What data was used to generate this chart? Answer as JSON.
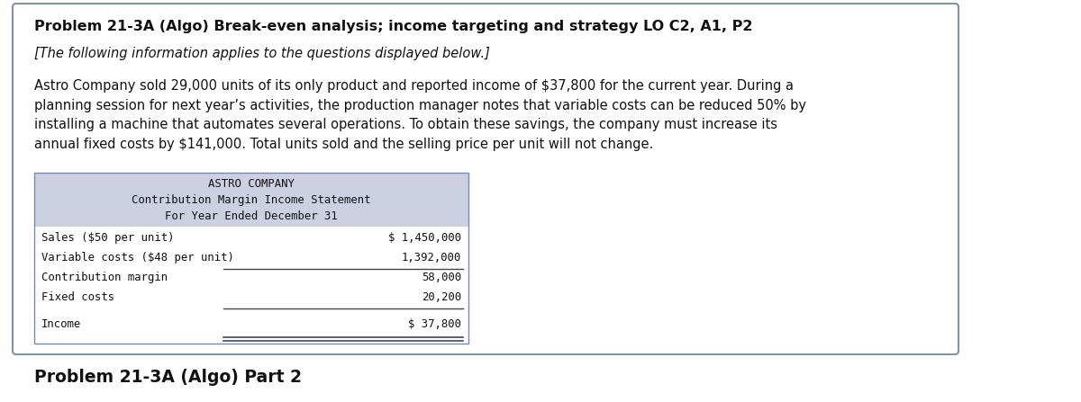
{
  "title": "Problem 21-3A (Algo) Break-even analysis; income targeting and strategy LO C2, A1, P2",
  "subtitle": "[The following information applies to the questions displayed below.]",
  "body_text": "Astro Company sold 29,000 units of its only product and reported income of $37,800 for the current year. During a\nplanning session for next year’s activities, the production manager notes that variable costs can be reduced 50% by\ninstalling a machine that automates several operations. To obtain these savings, the company must increase its\nannual fixed costs by $141,000. Total units sold and the selling price per unit will not change.",
  "table_title1": "ASTRO COMPANY",
  "table_title2": "Contribution Margin Income Statement",
  "table_title3": "For Year Ended December 31",
  "table_header_bg": "#cdd0e0",
  "table_rows": [
    [
      "Sales ($50 per unit)",
      "$ 1,450,000",
      false,
      false
    ],
    [
      "Variable costs ($48 per unit)",
      "1,392,000",
      true,
      false
    ],
    [
      "Contribution margin",
      "58,000",
      false,
      false
    ],
    [
      "Fixed costs",
      "20,200",
      true,
      false
    ],
    [
      "Income",
      "$ 37,800",
      false,
      true
    ]
  ],
  "footer_title": "Problem 21-3A (Algo) Part 2",
  "outer_border_color": "#8090b8",
  "bg_color": "#ffffff",
  "figwidth": 12.0,
  "figheight": 4.47,
  "dpi": 100
}
